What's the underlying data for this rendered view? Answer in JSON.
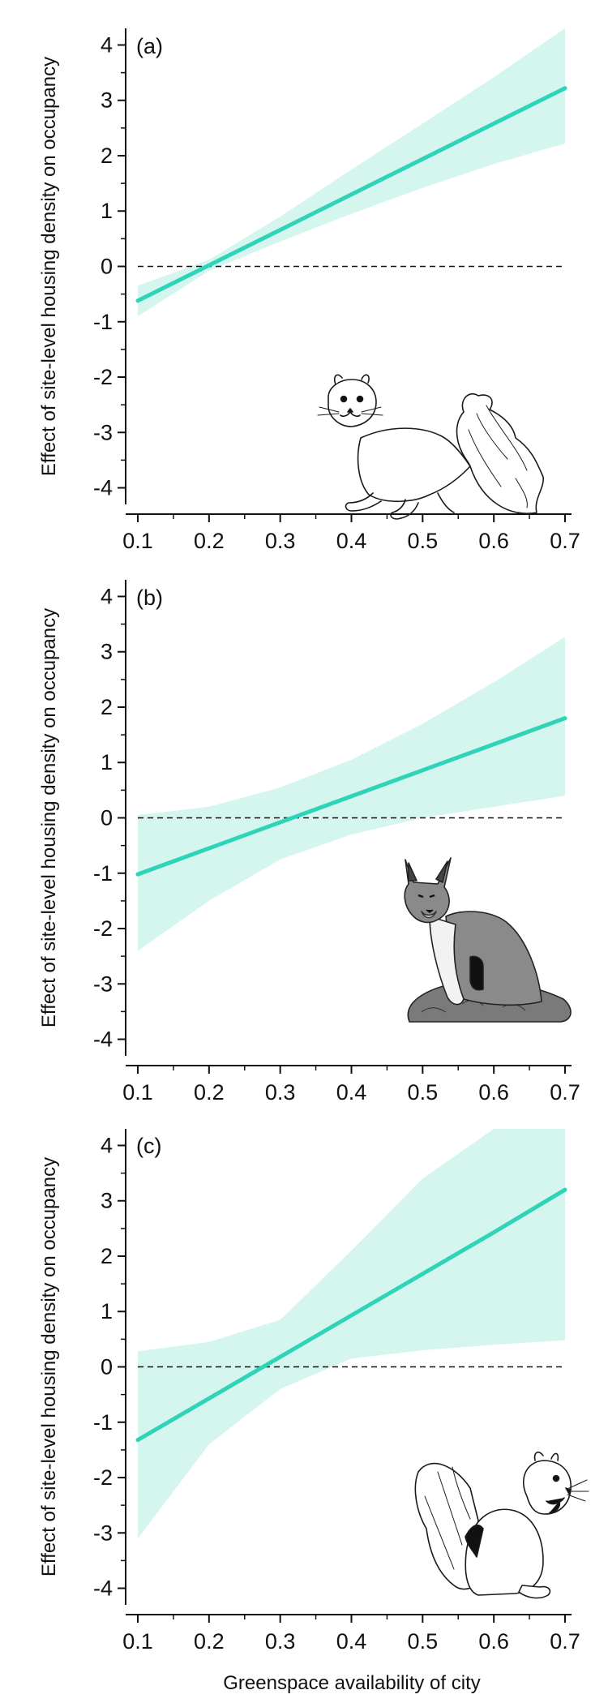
{
  "figure": {
    "xlabel": "Greenspace availability of city",
    "ylabel": "Effect of site-level housing density on occupancy",
    "colors": {
      "line": "#2fd4b8",
      "band": "#d4f6ef",
      "axis": "#111111",
      "zero_line": "#111111"
    }
  },
  "chart_data": [
    {
      "type": "line",
      "panel_label": "(a)",
      "animal_icon": "tree-squirrel-illustration",
      "xlim": [
        0.1,
        0.7
      ],
      "ylim": [
        -4.3,
        4.3
      ],
      "xticks": [
        "0.1",
        "0.2",
        "0.3",
        "0.4",
        "0.5",
        "0.6",
        "0.7"
      ],
      "yticks": [
        "4",
        "3",
        "2",
        "1",
        "0",
        "-1",
        "-2",
        "-3",
        "-4"
      ],
      "reference_line_y": 0,
      "series": [
        {
          "x": [
            0.1,
            0.2,
            0.3,
            0.4,
            0.5,
            0.6,
            0.7
          ],
          "y": [
            -0.62,
            0.02,
            0.66,
            1.3,
            1.94,
            2.58,
            3.22
          ],
          "lower": [
            -0.9,
            -0.08,
            0.45,
            0.95,
            1.42,
            1.85,
            2.22
          ],
          "upper": [
            -0.35,
            0.12,
            0.9,
            1.75,
            2.58,
            3.42,
            4.3
          ]
        }
      ]
    },
    {
      "type": "line",
      "panel_label": "(b)",
      "animal_icon": "gray-fox-illustration",
      "xlim": [
        0.1,
        0.7
      ],
      "ylim": [
        -4.3,
        4.3
      ],
      "xticks": [
        "0.1",
        "0.2",
        "0.3",
        "0.4",
        "0.5",
        "0.6",
        "0.7"
      ],
      "yticks": [
        "4",
        "3",
        "2",
        "1",
        "0",
        "-1",
        "-2",
        "-3",
        "-4"
      ],
      "reference_line_y": 0,
      "series": [
        {
          "x": [
            0.1,
            0.2,
            0.3,
            0.4,
            0.5,
            0.6,
            0.7
          ],
          "y": [
            -1.02,
            -0.55,
            -0.08,
            0.39,
            0.86,
            1.33,
            1.8
          ],
          "lower": [
            -2.4,
            -1.5,
            -0.75,
            -0.3,
            0.0,
            0.2,
            0.4
          ],
          "upper": [
            0.05,
            0.2,
            0.55,
            1.05,
            1.7,
            2.45,
            3.27
          ]
        }
      ]
    },
    {
      "type": "line",
      "panel_label": "(c)",
      "animal_icon": "eastern-gray-squirrel-illustration",
      "xlim": [
        0.1,
        0.7
      ],
      "ylim": [
        -4.3,
        4.3
      ],
      "xticks": [
        "0.1",
        "0.2",
        "0.3",
        "0.4",
        "0.5",
        "0.6",
        "0.7"
      ],
      "yticks": [
        "4",
        "3",
        "2",
        "1",
        "0",
        "-1",
        "-2",
        "-3",
        "-4"
      ],
      "reference_line_y": 0,
      "series": [
        {
          "x": [
            0.1,
            0.2,
            0.3,
            0.4,
            0.5,
            0.6,
            0.7
          ],
          "y": [
            -1.32,
            -0.57,
            0.18,
            0.93,
            1.68,
            2.43,
            3.2
          ],
          "lower": [
            -3.1,
            -1.4,
            -0.4,
            0.15,
            0.3,
            0.4,
            0.48
          ],
          "upper": [
            0.28,
            0.45,
            0.85,
            2.1,
            3.4,
            4.3,
            4.3
          ]
        }
      ]
    }
  ]
}
